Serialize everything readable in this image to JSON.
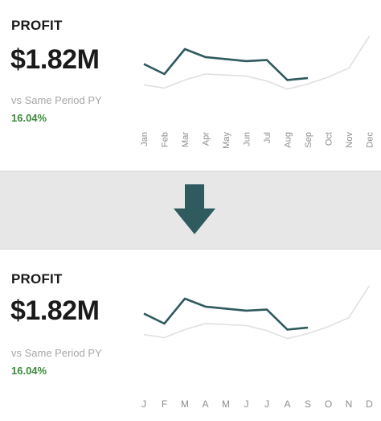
{
  "colors": {
    "series_current": "#2f5a5e",
    "series_prior": "#e0e0e0",
    "arrow": "#2f5a5e",
    "positive": "#3b8a3b",
    "band": "#e7e7e7"
  },
  "icons": {
    "divider": "down-arrow-icon"
  },
  "top_card": {
    "title": "PROFIT",
    "value": "$1.82M",
    "compare_label": "vs Same Period PY",
    "change_pct": "16.04%",
    "months": [
      "Jan",
      "Feb",
      "Mar",
      "Apr",
      "May",
      "Jun",
      "Jul",
      "Aug",
      "Sep",
      "Oct",
      "Nov",
      "Dec"
    ]
  },
  "bottom_card": {
    "title": "PROFIT",
    "value": "$1.82M",
    "compare_label": "vs Same Period PY",
    "change_pct": "16.04%",
    "months": [
      "J",
      "F",
      "M",
      "A",
      "M",
      "J",
      "J",
      "A",
      "S",
      "O",
      "N",
      "D"
    ]
  },
  "chart_data": [
    {
      "type": "line",
      "categories": [
        "Jan",
        "Feb",
        "Mar",
        "Apr",
        "May",
        "Jun",
        "Jul",
        "Aug",
        "Sep",
        "Oct",
        "Nov",
        "Dec"
      ],
      "ylim": [
        0,
        100
      ],
      "series": [
        {
          "values": [
            60,
            50,
            75,
            67,
            65,
            63,
            64,
            44,
            46,
            null,
            null,
            null
          ]
        },
        {
          "values": [
            39,
            36,
            44,
            50,
            49,
            48,
            43,
            35,
            40,
            47,
            56,
            88
          ]
        }
      ]
    },
    {
      "type": "line",
      "categories": [
        "J",
        "F",
        "M",
        "A",
        "M",
        "J",
        "J",
        "A",
        "S",
        "O",
        "N",
        "D"
      ],
      "ylim": [
        0,
        100
      ],
      "series": [
        {
          "values": [
            60,
            50,
            75,
            67,
            65,
            63,
            64,
            44,
            46,
            null,
            null,
            null
          ]
        },
        {
          "values": [
            39,
            36,
            44,
            50,
            49,
            48,
            43,
            35,
            40,
            47,
            56,
            88
          ]
        }
      ]
    }
  ]
}
